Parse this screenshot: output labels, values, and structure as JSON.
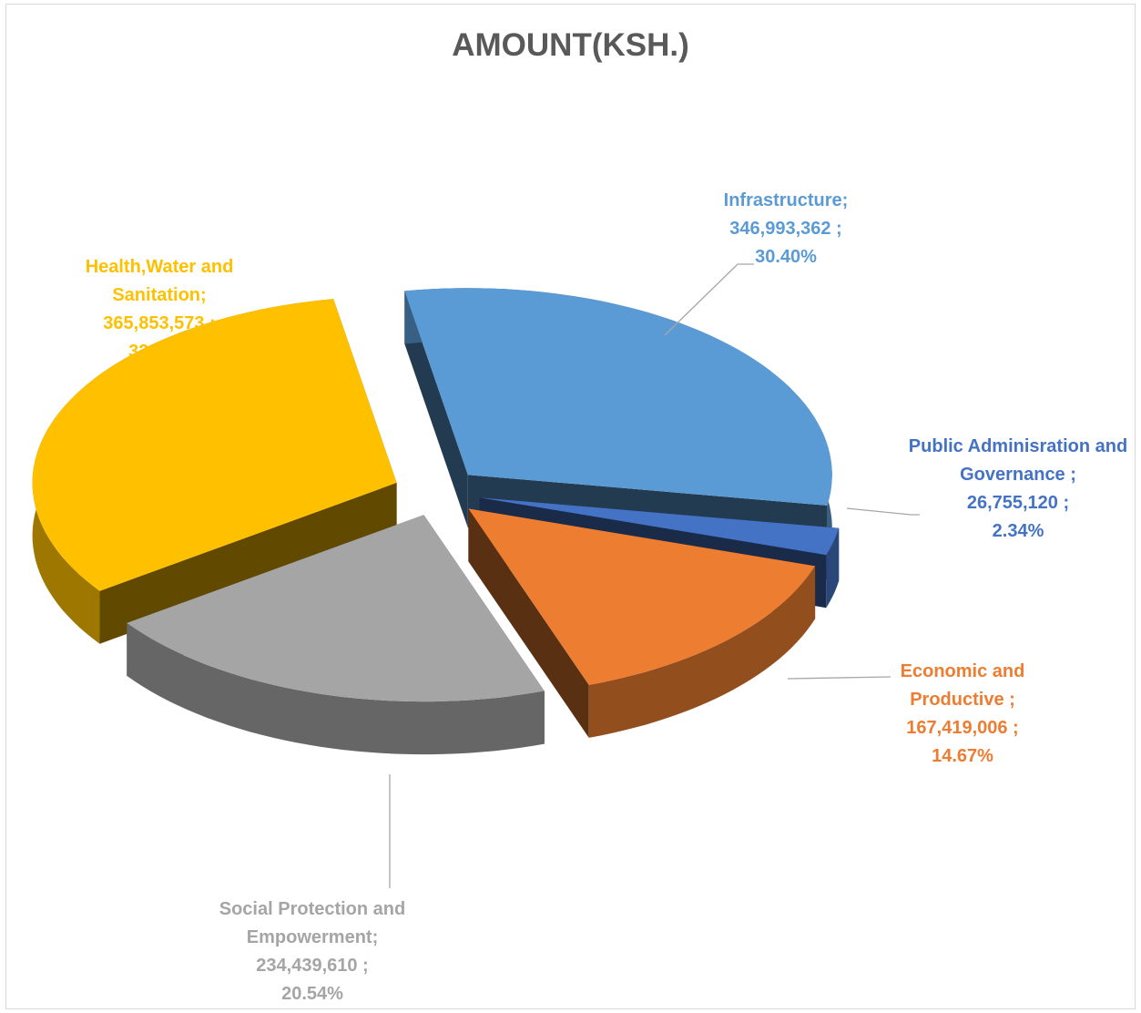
{
  "chart_data": {
    "type": "pie",
    "title": "AMOUNT(KSH.)",
    "categories": [
      "Infrastructure;",
      "Public Adminisration and Governance ;",
      "Economic and Productive  ;",
      "Social Protection and Empowerment;",
      "Health,Water and Sanitation;"
    ],
    "values": [
      346993362,
      26755120,
      167419006,
      234439610,
      365853573
    ],
    "value_labels": [
      "346,993,362 ;",
      "26,755,120 ;",
      "167,419,006 ;",
      "234,439,610 ;",
      "365,853,573 ;"
    ],
    "percentages": [
      30.4,
      2.34,
      14.67,
      20.54,
      32.05
    ],
    "percentage_labels": [
      "30.40%",
      "2.34%",
      "14.67%",
      "20.54%",
      "32.05%"
    ],
    "colors": [
      "#5b9bd5",
      "#4472c4",
      "#ed7d31",
      "#a5a5a5",
      "#ffc000"
    ],
    "label_colors": [
      "#5b9bd5",
      "#4472c4",
      "#ed7d31",
      "#a5a5a5",
      "#ffc000"
    ]
  }
}
